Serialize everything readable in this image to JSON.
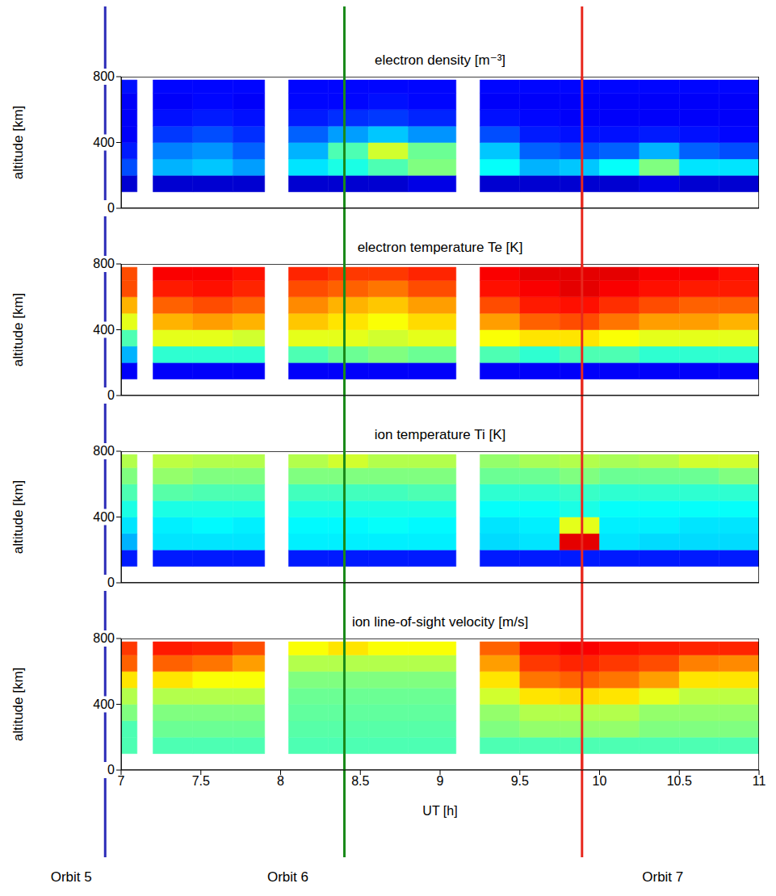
{
  "chart_data": [
    {
      "type": "heatmap",
      "title": "electron density [m⁻³]",
      "y_label": "altitude [km]",
      "xlim": [
        7,
        11
      ],
      "xticks": [
        7,
        7.5,
        8,
        8.5,
        9,
        9.5,
        10,
        10.5,
        11
      ],
      "ylim": [
        0,
        800
      ],
      "yticks": [
        0,
        400,
        800
      ],
      "tick_labels": "y",
      "x_edges": [
        7.0,
        7.1,
        7.2,
        7.45,
        7.7,
        7.9,
        8.05,
        8.3,
        8.55,
        8.8,
        9.1,
        9.25,
        9.5,
        9.75,
        10.0,
        10.25,
        10.5,
        10.75,
        11.0
      ],
      "y_edges": [
        100,
        200,
        300,
        400,
        500,
        600,
        700,
        780
      ],
      "cells": [
        [
          0.08,
          null,
          0.08,
          0.08,
          0.08,
          null,
          0.08,
          0.08,
          0.08,
          0.1,
          null,
          0.08,
          0.08,
          0.08,
          0.08,
          0.1,
          0.08,
          0.08
        ],
        [
          0.2,
          null,
          0.3,
          0.32,
          0.28,
          null,
          0.35,
          0.4,
          0.45,
          0.5,
          null,
          0.38,
          0.3,
          0.32,
          0.38,
          0.5,
          0.35,
          0.35
        ],
        [
          0.15,
          null,
          0.25,
          0.27,
          0.22,
          null,
          0.3,
          0.45,
          0.58,
          0.48,
          null,
          0.32,
          0.22,
          0.2,
          0.22,
          0.3,
          0.22,
          0.2
        ],
        [
          0.12,
          null,
          0.18,
          0.2,
          0.17,
          null,
          0.22,
          0.28,
          0.32,
          0.27,
          null,
          0.2,
          0.15,
          0.14,
          0.14,
          0.15,
          0.14,
          0.13
        ],
        [
          0.12,
          null,
          0.14,
          0.15,
          0.14,
          null,
          0.15,
          0.17,
          0.18,
          0.16,
          null,
          0.14,
          0.13,
          0.12,
          0.12,
          0.12,
          0.12,
          0.12
        ],
        [
          0.12,
          null,
          0.12,
          0.13,
          0.12,
          null,
          0.13,
          0.13,
          0.14,
          0.13,
          null,
          0.12,
          0.12,
          0.12,
          0.12,
          0.12,
          0.12,
          0.12
        ],
        [
          0.14,
          null,
          0.13,
          0.13,
          0.13,
          null,
          0.13,
          0.13,
          0.13,
          0.13,
          null,
          0.13,
          0.13,
          0.13,
          0.13,
          0.13,
          0.13,
          0.13
        ]
      ]
    },
    {
      "type": "heatmap",
      "title": "electron temperature Te [K]",
      "y_label": "altitude [km]",
      "xlim": [
        7,
        11
      ],
      "xticks": [
        7,
        7.5,
        8,
        8.5,
        9,
        9.5,
        10,
        10.5,
        11
      ],
      "ylim": [
        0,
        800
      ],
      "yticks": [
        0,
        400,
        800
      ],
      "tick_labels": "y",
      "x_edges": [
        7.0,
        7.1,
        7.2,
        7.45,
        7.7,
        7.9,
        8.05,
        8.3,
        8.55,
        8.8,
        9.1,
        9.25,
        9.5,
        9.75,
        10.0,
        10.25,
        10.5,
        10.75,
        11.0
      ],
      "y_edges": [
        100,
        200,
        300,
        400,
        500,
        600,
        700,
        780
      ],
      "cells": [
        [
          0.12,
          null,
          0.12,
          0.12,
          0.12,
          null,
          0.12,
          0.12,
          0.12,
          0.12,
          null,
          0.12,
          0.12,
          0.12,
          0.12,
          0.12,
          0.12,
          0.12
        ],
        [
          0.3,
          null,
          0.42,
          0.42,
          0.42,
          null,
          0.45,
          0.48,
          0.5,
          0.48,
          null,
          0.45,
          0.42,
          0.45,
          0.45,
          0.42,
          0.42,
          0.42
        ],
        [
          0.45,
          null,
          0.6,
          0.6,
          0.58,
          null,
          0.6,
          0.6,
          0.58,
          0.6,
          null,
          0.62,
          0.65,
          0.65,
          0.62,
          0.6,
          0.6,
          0.6
        ],
        [
          0.6,
          null,
          0.7,
          0.72,
          0.7,
          null,
          0.68,
          0.65,
          0.62,
          0.66,
          null,
          0.72,
          0.78,
          0.8,
          0.76,
          0.72,
          0.72,
          0.7
        ],
        [
          0.7,
          null,
          0.78,
          0.8,
          0.78,
          null,
          0.74,
          0.7,
          0.68,
          0.72,
          null,
          0.8,
          0.85,
          0.86,
          0.83,
          0.8,
          0.78,
          0.78
        ],
        [
          0.8,
          null,
          0.85,
          0.86,
          0.84,
          null,
          0.8,
          0.78,
          0.76,
          0.8,
          null,
          0.86,
          0.88,
          0.9,
          0.88,
          0.86,
          0.85,
          0.85
        ],
        [
          0.8,
          null,
          0.88,
          0.88,
          0.86,
          null,
          0.84,
          0.82,
          0.82,
          0.84,
          null,
          0.88,
          0.9,
          0.9,
          0.9,
          0.88,
          0.88,
          0.86
        ]
      ]
    },
    {
      "type": "heatmap",
      "title": "ion temperature Ti [K]",
      "y_label": "altitude [km]",
      "xlim": [
        7,
        11
      ],
      "xticks": [
        7,
        7.5,
        8,
        8.5,
        9,
        9.5,
        10,
        10.5,
        11
      ],
      "ylim": [
        0,
        800
      ],
      "yticks": [
        0,
        400,
        800
      ],
      "tick_labels": "y",
      "x_edges": [
        7.0,
        7.1,
        7.2,
        7.45,
        7.7,
        7.9,
        8.05,
        8.3,
        8.55,
        8.8,
        9.1,
        9.25,
        9.5,
        9.75,
        10.0,
        10.25,
        10.5,
        10.75,
        11.0
      ],
      "y_edges": [
        100,
        200,
        300,
        400,
        500,
        600,
        700,
        780
      ],
      "cells": [
        [
          0.15,
          null,
          0.15,
          0.15,
          0.15,
          null,
          0.15,
          0.15,
          0.15,
          0.15,
          null,
          0.15,
          0.15,
          0.15,
          0.15,
          0.15,
          0.15,
          0.15
        ],
        [
          0.3,
          null,
          0.35,
          0.35,
          0.35,
          null,
          0.36,
          0.36,
          0.36,
          0.36,
          null,
          0.34,
          0.35,
          0.9,
          0.35,
          0.34,
          0.34,
          0.34
        ],
        [
          0.35,
          null,
          0.36,
          0.37,
          0.36,
          null,
          0.37,
          0.37,
          0.38,
          0.37,
          null,
          0.35,
          0.36,
          0.6,
          0.36,
          0.36,
          0.35,
          0.35
        ],
        [
          0.4,
          null,
          0.4,
          0.4,
          0.4,
          null,
          0.4,
          0.4,
          0.4,
          0.4,
          null,
          0.38,
          0.38,
          0.4,
          0.38,
          0.38,
          0.38,
          0.38
        ],
        [
          0.45,
          null,
          0.46,
          0.45,
          0.45,
          null,
          0.44,
          0.44,
          0.44,
          0.45,
          null,
          0.42,
          0.42,
          0.43,
          0.42,
          0.42,
          0.42,
          0.42
        ],
        [
          0.5,
          null,
          0.52,
          0.5,
          0.5,
          null,
          0.5,
          0.5,
          0.5,
          0.5,
          null,
          0.48,
          0.48,
          0.5,
          0.48,
          0.48,
          0.48,
          0.5
        ],
        [
          0.55,
          null,
          0.56,
          0.55,
          0.55,
          null,
          0.55,
          0.58,
          0.55,
          0.55,
          null,
          0.52,
          0.54,
          0.55,
          0.54,
          0.55,
          0.58,
          0.58
        ]
      ]
    },
    {
      "type": "heatmap",
      "title": "ion line-of-sight velocity [m/s]",
      "y_label": "altitude [km]",
      "x_label": "UT [h]",
      "xlim": [
        7,
        11
      ],
      "xticks": [
        7,
        7.5,
        8,
        8.5,
        9,
        9.5,
        10,
        10.5,
        11
      ],
      "ylim": [
        0,
        800
      ],
      "yticks": [
        0,
        400,
        800
      ],
      "x_edges": [
        7.0,
        7.1,
        7.2,
        7.45,
        7.7,
        7.9,
        8.05,
        8.3,
        8.55,
        8.8,
        9.1,
        9.25,
        9.5,
        9.75,
        10.0,
        10.25,
        10.5,
        10.75,
        11.0
      ],
      "y_edges": [
        100,
        200,
        300,
        400,
        500,
        600,
        700,
        780
      ],
      "cells": [
        [
          0.45,
          null,
          0.45,
          0.45,
          0.45,
          null,
          0.45,
          0.45,
          0.45,
          0.45,
          null,
          0.45,
          0.45,
          0.45,
          0.45,
          0.45,
          0.45,
          0.45
        ],
        [
          0.45,
          null,
          0.48,
          0.48,
          0.48,
          null,
          0.46,
          0.46,
          0.46,
          0.46,
          null,
          0.5,
          0.52,
          0.52,
          0.52,
          0.5,
          0.5,
          0.5
        ],
        [
          0.5,
          null,
          0.5,
          0.5,
          0.5,
          null,
          0.47,
          0.47,
          0.47,
          0.47,
          null,
          0.52,
          0.55,
          0.55,
          0.55,
          0.52,
          0.52,
          0.52
        ],
        [
          0.55,
          null,
          0.55,
          0.55,
          0.55,
          null,
          0.48,
          0.48,
          0.48,
          0.48,
          null,
          0.58,
          0.65,
          0.66,
          0.65,
          0.6,
          0.56,
          0.56
        ],
        [
          0.65,
          null,
          0.65,
          0.62,
          0.62,
          null,
          0.5,
          0.5,
          0.5,
          0.5,
          null,
          0.65,
          0.76,
          0.78,
          0.76,
          0.72,
          0.65,
          0.65
        ],
        [
          0.78,
          null,
          0.78,
          0.76,
          0.72,
          null,
          0.55,
          0.55,
          0.55,
          0.55,
          null,
          0.72,
          0.82,
          0.84,
          0.82,
          0.8,
          0.75,
          0.74
        ],
        [
          0.82,
          null,
          0.85,
          0.84,
          0.8,
          null,
          0.62,
          0.65,
          0.62,
          0.62,
          null,
          0.78,
          0.86,
          0.88,
          0.86,
          0.85,
          0.84,
          0.84
        ]
      ]
    }
  ],
  "orbits": [
    {
      "label": "Orbit 5",
      "x": 6.9,
      "color": "#2b2bb8"
    },
    {
      "label": "Orbit 6",
      "x": 8.4,
      "color": "#1a8a1a"
    },
    {
      "label": "Orbit 7",
      "x": 9.89,
      "color": "#e8281e"
    }
  ]
}
